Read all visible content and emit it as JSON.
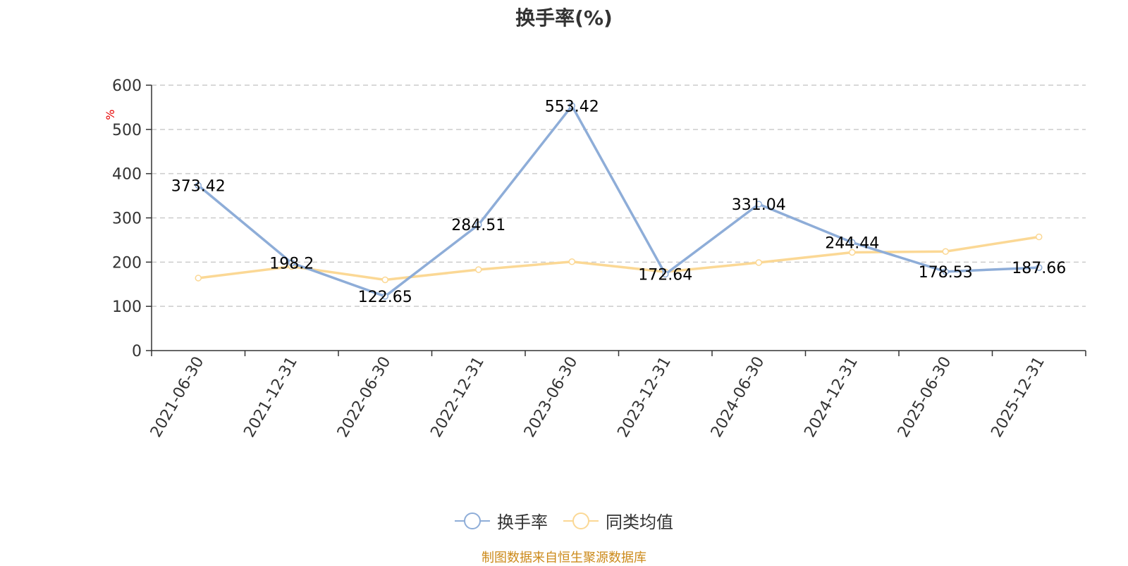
{
  "source_note": "制图数据来自恒生聚源数据库",
  "chart_data": {
    "type": "line",
    "title": "换手率(%)",
    "ylabel": "%",
    "xlabel": "",
    "ylim": [
      0,
      600
    ],
    "yticks": [
      0,
      100,
      200,
      300,
      400,
      500,
      600
    ],
    "grid": true,
    "legend_position": "bottom",
    "categories": [
      "2021-06-30",
      "2021-12-31",
      "2022-06-30",
      "2022-12-31",
      "2023-06-30",
      "2023-12-31",
      "2024-06-30",
      "2024-12-31",
      "2025-06-30",
      "2025-12-31"
    ],
    "series": [
      {
        "name": "换手率",
        "color": "#8eadd8",
        "values": [
          373.42,
          198.2,
          122.65,
          284.51,
          553.42,
          172.64,
          331.04,
          244.44,
          178.53,
          187.66
        ],
        "labels": [
          "373.42",
          "198.2",
          "122.65",
          "284.51",
          "553.42",
          "172.64",
          "331.04",
          "244.44",
          "178.53",
          "187.66"
        ]
      },
      {
        "name": "同类均值",
        "color": "#fbd895",
        "values": [
          164,
          190,
          160,
          183,
          201,
          178,
          199,
          222,
          224,
          257
        ]
      }
    ]
  }
}
